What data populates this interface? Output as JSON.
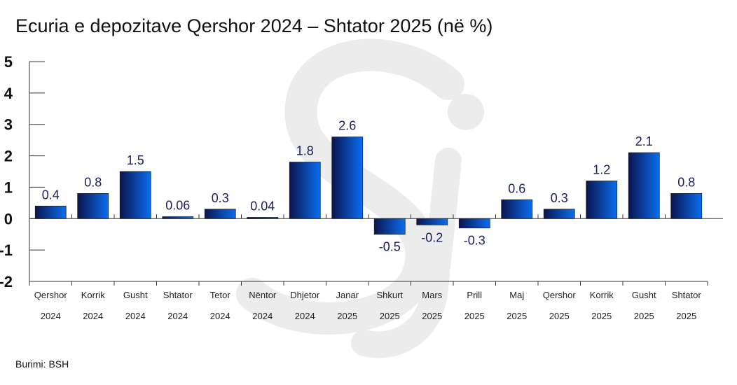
{
  "chart_data": {
    "type": "bar",
    "title": "Ecuria e depozitave Qershor 2024 – Shtator 2025 (në %)",
    "source": "Burimi: BSH",
    "xlabel": "",
    "ylabel": "",
    "ylim": [
      -2,
      5
    ],
    "yticks": [
      "5",
      "4",
      "3",
      "2",
      "1",
      "0",
      "-1",
      "-2"
    ],
    "ytick_values": [
      5,
      4,
      3,
      2,
      1,
      0,
      -1,
      -2
    ],
    "categories": [
      {
        "month": "Qershor",
        "year": "2024"
      },
      {
        "month": "Korrik",
        "year": "2024"
      },
      {
        "month": "Gusht",
        "year": "2024"
      },
      {
        "month": "Shtator",
        "year": "2024"
      },
      {
        "month": "Tetor",
        "year": "2024"
      },
      {
        "month": "Nëntor",
        "year": "2024"
      },
      {
        "month": "Dhjetor",
        "year": "2024"
      },
      {
        "month": "Janar",
        "year": "2025"
      },
      {
        "month": "Shkurt",
        "year": "2025"
      },
      {
        "month": "Mars",
        "year": "2025"
      },
      {
        "month": "Prill",
        "year": "2025"
      },
      {
        "month": "Maj",
        "year": "2025"
      },
      {
        "month": "Qershor",
        "year": "2025"
      },
      {
        "month": "Korrik",
        "year": "2025"
      },
      {
        "month": "Gusht",
        "year": "2025"
      },
      {
        "month": "Shtator",
        "year": "2025"
      }
    ],
    "values": [
      0.4,
      0.8,
      1.5,
      0.06,
      0.3,
      0.04,
      1.8,
      2.6,
      -0.5,
      -0.2,
      -0.3,
      0.6,
      0.3,
      1.2,
      2.1,
      0.8
    ],
    "value_labels": [
      "0.4",
      "0.8",
      "1.5",
      "0.06",
      "0.3",
      "0.04",
      "1.8",
      "2.6",
      "-0.5",
      "-0.2",
      "-0.3",
      "0.6",
      "0.3",
      "1.2",
      "2.1",
      "0.8"
    ],
    "colors": {
      "bar_dark": "#0a1450",
      "bar_light": "#0a6ef0",
      "label": "#1a2060",
      "watermark": "#ececec"
    },
    "grid": false,
    "legend": "none"
  }
}
